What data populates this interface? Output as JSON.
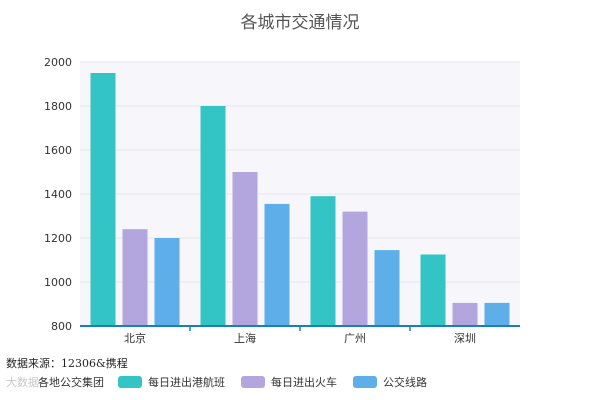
{
  "chart_data": {
    "type": "bar",
    "title": "各城市交通情况",
    "categories": [
      "北京",
      "上海",
      "广州",
      "深圳"
    ],
    "series": [
      {
        "name": "每日进出港航班",
        "color": "#33c5c6",
        "values": [
          1950,
          1800,
          1390,
          1125
        ]
      },
      {
        "name": "每日进出火车",
        "color": "#b3a5dd",
        "values": [
          1240,
          1500,
          1320,
          905
        ]
      },
      {
        "name": "公交线路",
        "color": "#5daee9",
        "values": [
          1200,
          1355,
          1145,
          905
        ]
      }
    ],
    "ylim": [
      800,
      2000
    ],
    "yticks": [
      800,
      1000,
      1200,
      1400,
      1600,
      1800,
      2000
    ],
    "grid": true,
    "legend_position": "bottom"
  },
  "legend_prefix": "各地公交集团",
  "source_note": "数据来源：12306&携程",
  "watermark": "大数据"
}
